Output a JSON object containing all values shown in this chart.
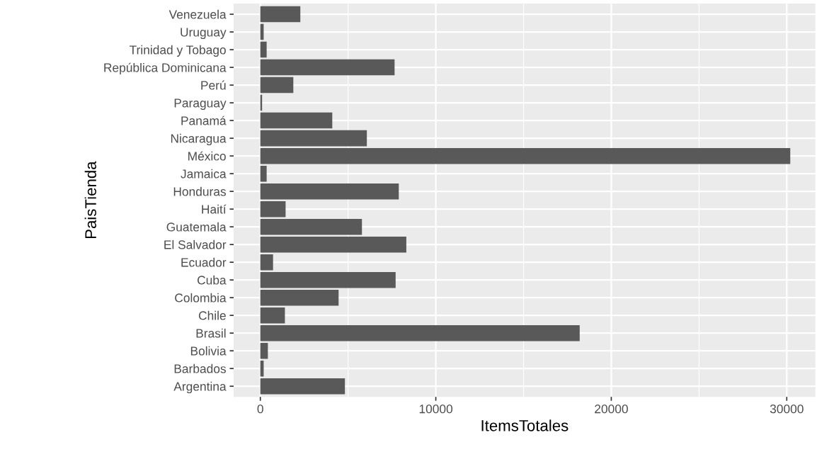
{
  "chart_data": {
    "type": "bar",
    "orientation": "horizontal",
    "xlabel": "ItemsTotales",
    "ylabel": "PaisTienda",
    "categories": [
      "Venezuela",
      "Uruguay",
      "Trinidad y Tobago",
      "República Dominicana",
      "Perú",
      "Paraguay",
      "Panamá",
      "Nicaragua",
      "México",
      "Jamaica",
      "Honduras",
      "Haití",
      "Guatemala",
      "El Salvador",
      "Ecuador",
      "Cuba",
      "Colombia",
      "Chile",
      "Brasil",
      "Bolivia",
      "Barbados",
      "Argentina"
    ],
    "values": [
      2280,
      190,
      360,
      7650,
      1880,
      100,
      4100,
      6070,
      30200,
      360,
      7890,
      1440,
      5790,
      8320,
      725,
      7710,
      4460,
      1400,
      18200,
      430,
      190,
      4820
    ],
    "color": "#595959",
    "xlim": [
      -1520,
      31630
    ],
    "xticks": [
      0,
      10000,
      20000,
      30000
    ],
    "grid": true,
    "legend": false
  }
}
